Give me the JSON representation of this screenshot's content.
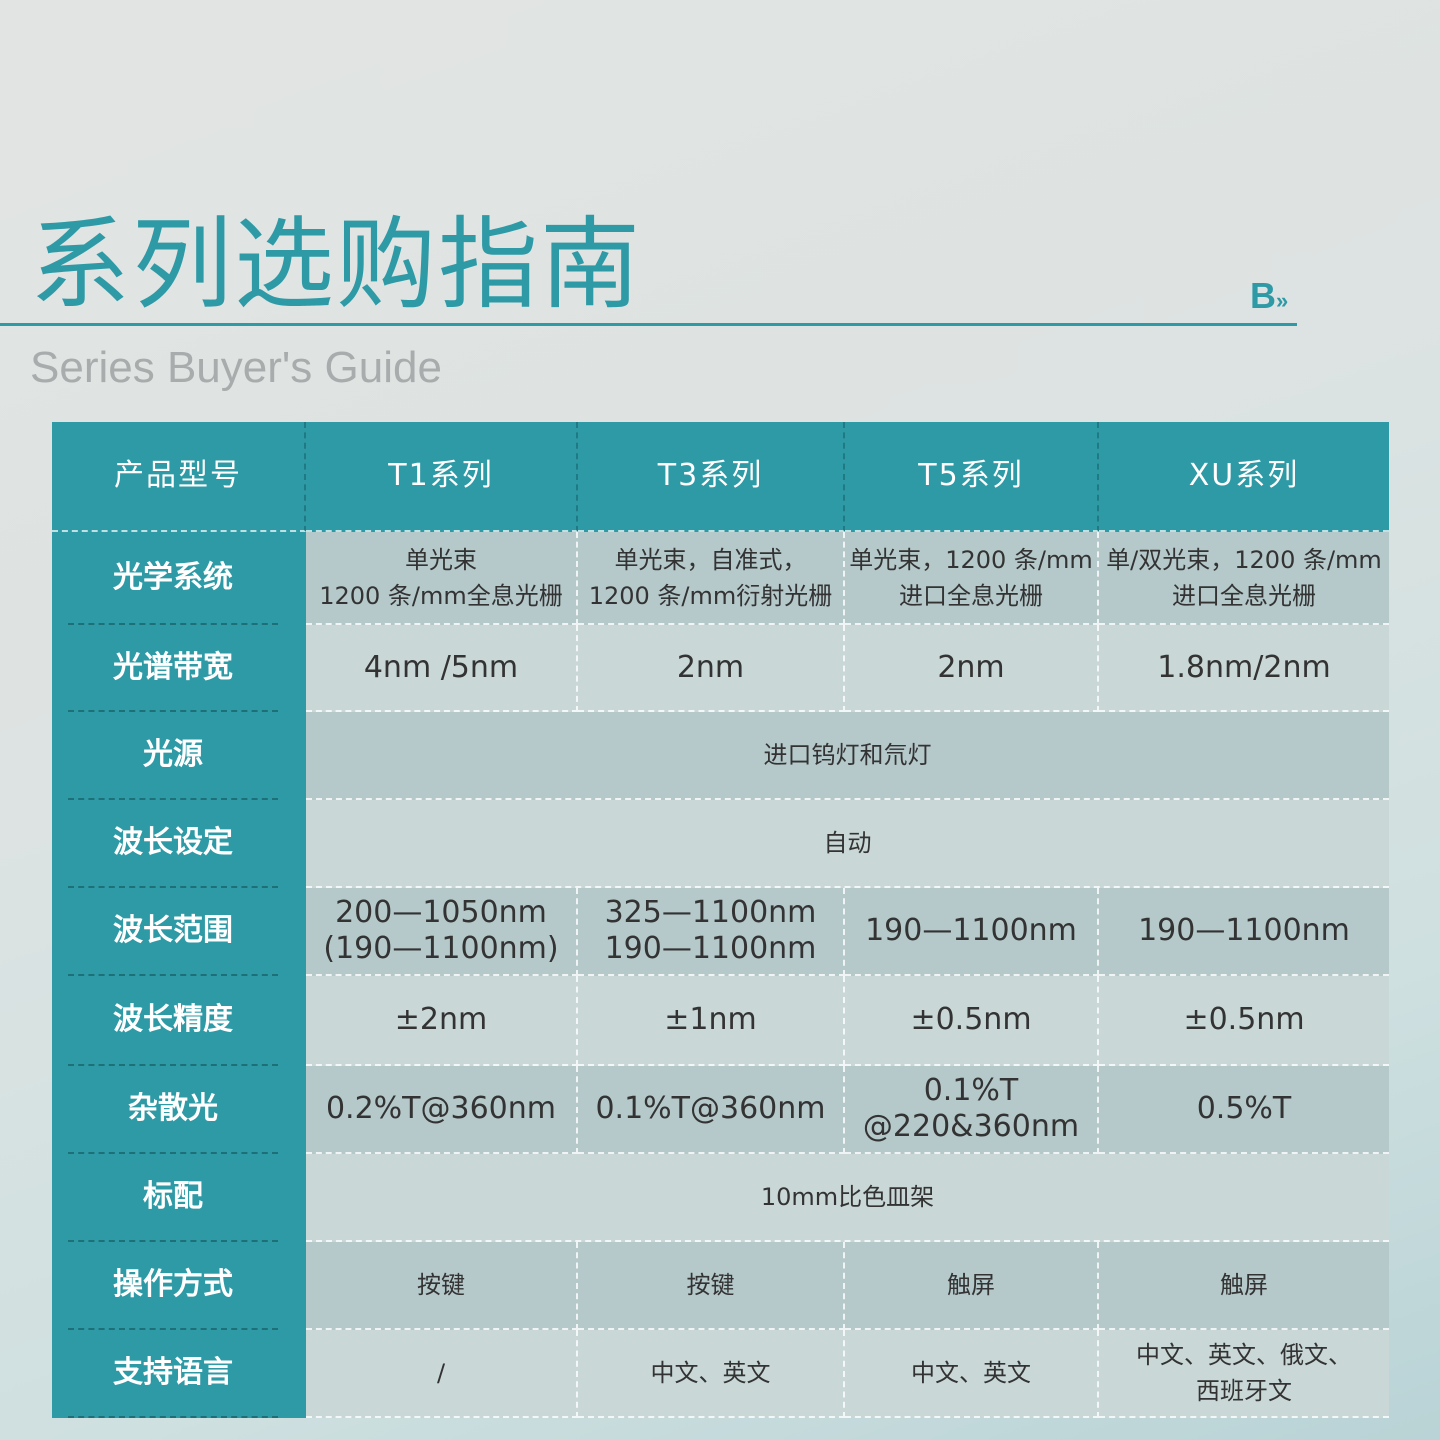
{
  "title": "系列选购指南",
  "subtitle": "Series Buyer's Guide",
  "logo": "B",
  "logo_mark": "»",
  "colors": {
    "accent": "#2e9aa6",
    "row_dark": "#b5c8ca",
    "row_light": "#c9d7d7"
  },
  "table": {
    "header": [
      "产品型号",
      "T1系列",
      "T3系列",
      "T5系列",
      "XU系列"
    ],
    "rows": [
      {
        "label": "光学系统",
        "cells": [
          "单光束\n1200 条/mm全息光栅",
          "单光束，自准式，\n1200 条/mm衍射光栅",
          "单光束，1200 条/mm\n进口全息光栅",
          "单/双光束，1200 条/mm\n进口全息光栅"
        ]
      },
      {
        "label": "光谱带宽",
        "cells": [
          "4nm /5nm",
          "2nm",
          "2nm",
          "1.8nm/2nm"
        ]
      },
      {
        "label": "光源",
        "cells": [
          "进口钨灯和氘灯"
        ]
      },
      {
        "label": "波长设定",
        "cells": [
          "自动"
        ]
      },
      {
        "label": "波长范围",
        "cells": [
          "200—1050nm\n(190—1100nm)",
          "325—1100nm\n190—1100nm",
          "190—1100nm",
          "190—1100nm"
        ]
      },
      {
        "label": "波长精度",
        "cells": [
          "±2nm",
          "±1nm",
          "±0.5nm",
          "±0.5nm"
        ]
      },
      {
        "label": "杂散光",
        "cells": [
          "0.2%T@360nm",
          "0.1%T@360nm",
          "0.1%T\n@220&360nm",
          "0.5%T"
        ]
      },
      {
        "label": "标配",
        "cells": [
          "10mm比色皿架"
        ]
      },
      {
        "label": "操作方式",
        "cells": [
          "按键",
          "按键",
          "触屏",
          "触屏"
        ]
      },
      {
        "label": "支持语言",
        "cells": [
          "/",
          "中文、英文",
          "中文、英文",
          "中文、英文、俄文、\n西班牙文"
        ]
      }
    ]
  }
}
